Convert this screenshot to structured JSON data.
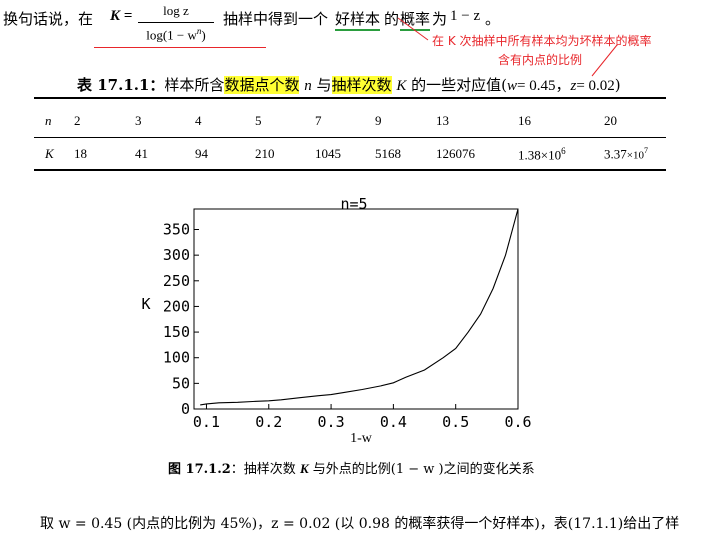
{
  "intro": {
    "lead": "换句话说，在",
    "lhs": "K =",
    "numerator": "log z",
    "denominator": "log(1 − w",
    "denominator_exp": "n",
    "denominator_close": ")",
    "mid_text_1": "抽样中得到一个",
    "good_sample": "好样本",
    "mid_text_2": "的",
    "probability": "概率",
    "mid_text_3": "为",
    "rhs": "1 − z",
    "end": "。"
  },
  "annotation": {
    "line1": "在 K 次抽样中所有样本均为坏样本的概率",
    "line2": "含有内点的比例"
  },
  "table_caption": {
    "label": "表 17.1.1：",
    "text1": "样本所含",
    "hl1": "数据点个数",
    "var_n": "n",
    "text2": "与",
    "hl2": "抽样次数",
    "var_k": "K",
    "text3": "的一些对应值(",
    "params_w": "w",
    "params_w_val": "= 0.45",
    "params_sep": "，",
    "params_z": "z",
    "params_z_val": "= 0.02",
    "close": ")"
  },
  "table": {
    "row_n_label": "n",
    "row_k_label": "K",
    "n_values": [
      "2",
      "3",
      "4",
      "5",
      "7",
      "9",
      "13",
      "16",
      "20"
    ],
    "k_values": [
      "18",
      "41",
      "94",
      "210",
      "1045",
      "5168",
      "126076"
    ],
    "k_sci_1_base": "1.38×10",
    "k_sci_1_exp": "6",
    "k_sci_2_base": "3.37",
    "k_sci_2_tail": "×10",
    "k_sci_2_exp": "7"
  },
  "chart_data": {
    "type": "line",
    "title": "n=5",
    "xlabel": "1-w",
    "ylabel": "K",
    "xlim": [
      0.08,
      0.6
    ],
    "ylim": [
      0,
      390
    ],
    "xticks": [
      "0.1",
      "0.2",
      "0.3",
      "0.4",
      "0.5",
      "0.6"
    ],
    "yticks": [
      "0",
      "50",
      "100",
      "150",
      "200",
      "250",
      "300",
      "350"
    ],
    "x": [
      0.09,
      0.1,
      0.12,
      0.15,
      0.18,
      0.2,
      0.22,
      0.25,
      0.28,
      0.3,
      0.32,
      0.35,
      0.38,
      0.4,
      0.42,
      0.45,
      0.48,
      0.5,
      0.52,
      0.54,
      0.56,
      0.58,
      0.6
    ],
    "y": [
      8,
      10,
      12,
      13,
      15,
      16,
      18,
      22,
      26,
      28,
      32,
      38,
      45,
      51,
      62,
      76,
      100,
      118,
      150,
      185,
      235,
      300,
      390
    ],
    "grid": false
  },
  "figure_caption": {
    "label": "图 17.1.2",
    "sep": "：",
    "text1": "抽样次数",
    "var_k": "K",
    "text2": "与外点的比例(1 − w )之间的变化关系"
  },
  "bottom": {
    "text": "取 w = 0.45 (内点的比例为 45%)，z = 0.02 (以 0.98 的概率获得一个好样本)，表(17.1.1)给出了样"
  }
}
